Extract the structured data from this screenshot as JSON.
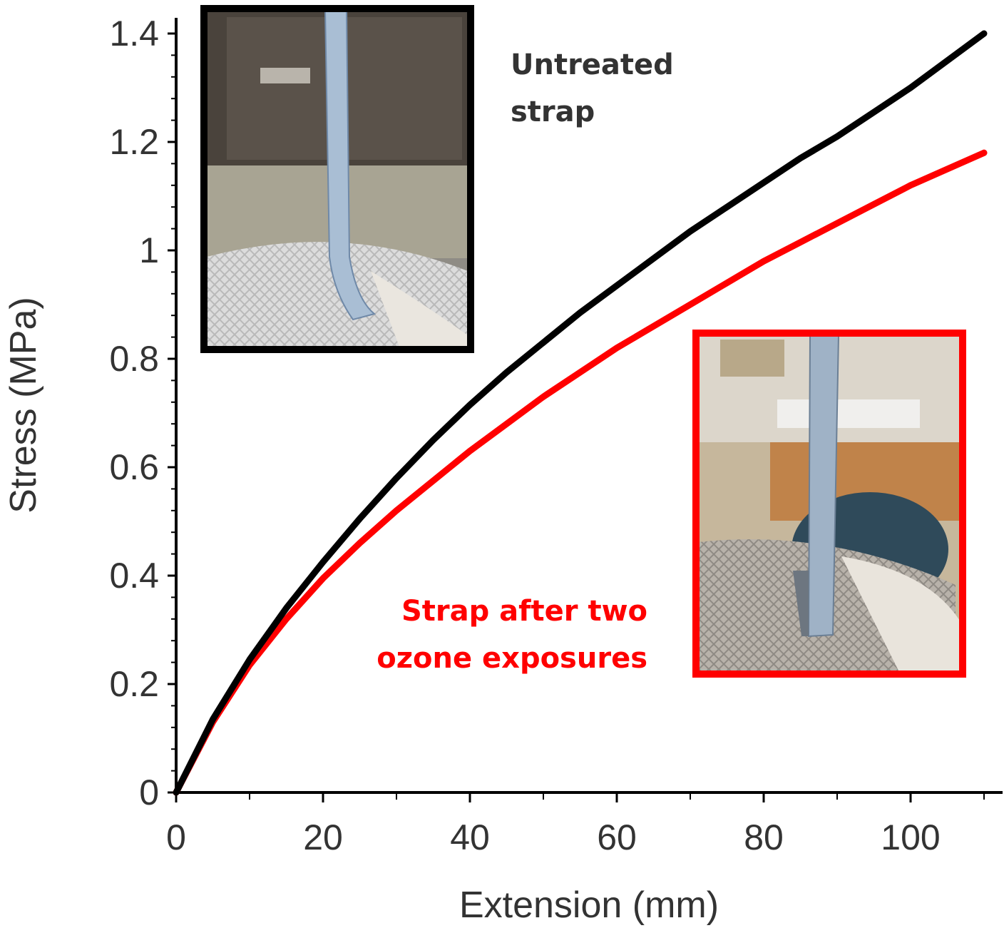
{
  "chart_data": {
    "type": "line",
    "title": "",
    "xlabel": "Extension (mm)",
    "ylabel": "Stress (MPa)",
    "xlim": [
      0,
      110
    ],
    "ylim": [
      0,
      1.4
    ],
    "x_ticks": [
      0,
      20,
      40,
      60,
      80,
      100
    ],
    "x_tick_labels": [
      "0",
      "20",
      "40",
      "60",
      "80",
      "100"
    ],
    "y_ticks": [
      0,
      0.2,
      0.4,
      0.6,
      0.8,
      1.0,
      1.2,
      1.4
    ],
    "y_tick_labels": [
      "0",
      "0.2",
      "0.4",
      "0.6",
      "0.8",
      "1",
      "1.2",
      "1.4"
    ],
    "grid": false,
    "x": [
      0,
      5,
      10,
      15,
      20,
      25,
      30,
      35,
      40,
      45,
      50,
      55,
      60,
      65,
      70,
      75,
      80,
      85,
      90,
      95,
      100,
      105,
      110
    ],
    "series": [
      {
        "name": "Untreated strap",
        "color": "#000000",
        "values": [
          0,
          0.135,
          0.245,
          0.34,
          0.425,
          0.505,
          0.58,
          0.65,
          0.715,
          0.775,
          0.83,
          0.885,
          0.935,
          0.985,
          1.035,
          1.08,
          1.125,
          1.17,
          1.21,
          1.255,
          1.3,
          1.35,
          1.4
        ]
      },
      {
        "name": "Strap after two ozone exposures",
        "color": "#ff0000",
        "values": [
          0,
          0.13,
          0.235,
          0.32,
          0.395,
          0.46,
          0.52,
          0.575,
          0.63,
          0.68,
          0.73,
          0.775,
          0.82,
          0.86,
          0.9,
          0.94,
          0.98,
          1.015,
          1.05,
          1.085,
          1.12,
          1.15,
          1.18
        ]
      }
    ],
    "annotations": {
      "untreated": {
        "lines": [
          "Untreated",
          "strap"
        ],
        "color": "#333333"
      },
      "ozone": {
        "lines": [
          "Strap after two",
          "ozone exposures"
        ],
        "color": "#ff0000"
      }
    },
    "insets": [
      {
        "name": "untreated-photo",
        "border_color": "#000000"
      },
      {
        "name": "ozone-photo",
        "border_color": "#ff0000"
      }
    ]
  }
}
